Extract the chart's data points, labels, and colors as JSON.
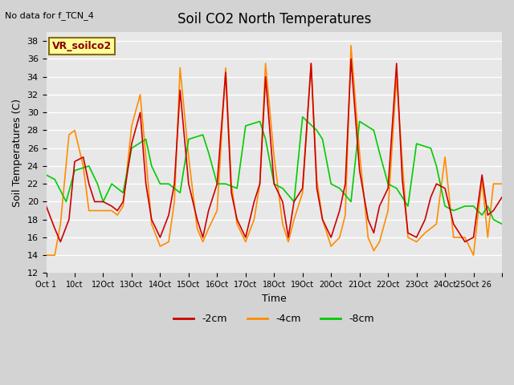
{
  "title": "Soil CO2 North Temperatures",
  "no_data_label": "No data for f_TCN_4",
  "ylabel": "Soil Temperatures (C)",
  "xlabel": "Time",
  "ylim": [
    12,
    39
  ],
  "yticks": [
    12,
    14,
    16,
    18,
    20,
    22,
    24,
    26,
    28,
    30,
    32,
    34,
    36,
    38
  ],
  "xtick_labels": [
    "Oct 1",
    "10ct",
    "12Oct",
    "13Oct",
    "14Oct",
    "15Oct",
    "16Oct",
    "17Oct",
    "18Oct",
    "19Oct",
    "20Oct",
    "21Oct",
    "22Oct",
    "23Oct",
    "24Oct",
    "25Oct 26"
  ],
  "box_label": "VR_soilco2",
  "box_label_color": "#8B0000",
  "box_bg_color": "#FFFF99",
  "line_2cm_color": "#CC0000",
  "line_4cm_color": "#FF8C00",
  "line_8cm_color": "#00CC00",
  "legend_labels": [
    "-2cm",
    "-4cm",
    "-8cm"
  ],
  "bg_color": "#E8E8E8",
  "plot_bg_color": "#F0F0F0",
  "x_2cm": [
    0,
    0.3,
    0.5,
    0.8,
    1.0,
    1.3,
    1.5,
    1.7,
    2.0,
    2.3,
    2.5,
    2.7,
    3.0,
    3.3,
    3.5,
    3.7,
    4.0,
    4.3,
    4.5,
    4.7,
    5.0,
    5.3,
    5.5,
    5.7,
    6.0,
    6.3,
    6.5,
    6.7,
    7.0,
    7.3,
    7.5,
    7.7,
    8.0,
    8.3,
    8.5,
    8.7,
    9.0,
    9.3,
    9.5,
    9.7,
    10.0,
    10.3,
    10.5,
    10.7,
    11.0,
    11.3,
    11.5,
    11.7,
    12.0,
    12.3,
    12.5,
    12.7,
    13.0,
    13.3,
    13.5,
    13.7,
    14.0,
    14.3,
    14.5,
    14.7,
    15.0,
    15.3,
    15.5,
    15.7,
    16.0
  ],
  "y_2cm": [
    19.5,
    17.0,
    15.5,
    18.0,
    24.5,
    25.0,
    22.0,
    20.0,
    20.0,
    19.5,
    19.0,
    20.0,
    26.5,
    30.0,
    22.0,
    18.0,
    16.0,
    18.5,
    22.0,
    32.5,
    22.0,
    18.0,
    16.0,
    19.0,
    22.0,
    34.5,
    21.0,
    18.0,
    16.0,
    20.0,
    22.0,
    34.0,
    22.0,
    20.0,
    16.0,
    20.0,
    21.5,
    35.5,
    21.5,
    18.0,
    16.0,
    19.0,
    22.0,
    36.0,
    23.5,
    18.0,
    16.5,
    19.5,
    21.5,
    35.5,
    22.5,
    16.5,
    16.0,
    18.0,
    20.5,
    22.0,
    21.5,
    17.5,
    16.5,
    15.5,
    16.0,
    23.0,
    18.5,
    19.0,
    20.5
  ],
  "x_4cm": [
    0,
    0.3,
    0.5,
    0.8,
    1.0,
    1.3,
    1.5,
    1.7,
    2.0,
    2.3,
    2.5,
    2.7,
    3.0,
    3.3,
    3.5,
    3.7,
    4.0,
    4.3,
    4.5,
    4.7,
    5.0,
    5.3,
    5.5,
    5.7,
    6.0,
    6.3,
    6.5,
    6.7,
    7.0,
    7.3,
    7.5,
    7.7,
    8.0,
    8.3,
    8.5,
    8.7,
    9.0,
    9.3,
    9.5,
    9.7,
    10.0,
    10.3,
    10.5,
    10.7,
    11.0,
    11.3,
    11.5,
    11.7,
    12.0,
    12.3,
    12.5,
    12.7,
    13.0,
    13.3,
    13.5,
    13.7,
    14.0,
    14.3,
    14.5,
    14.7,
    15.0,
    15.3,
    15.5,
    15.7,
    16.0
  ],
  "y_4cm": [
    14.0,
    14.0,
    17.5,
    27.5,
    28.0,
    24.0,
    19.0,
    19.0,
    19.0,
    19.0,
    18.5,
    19.5,
    28.5,
    32.0,
    25.0,
    17.5,
    15.0,
    15.5,
    20.0,
    35.0,
    25.0,
    17.0,
    15.5,
    17.0,
    19.0,
    35.0,
    22.0,
    17.5,
    15.5,
    18.0,
    22.0,
    35.5,
    25.0,
    17.5,
    15.5,
    18.0,
    21.0,
    35.5,
    22.5,
    18.0,
    15.0,
    16.0,
    18.5,
    37.5,
    25.5,
    16.0,
    14.5,
    15.5,
    19.0,
    34.0,
    24.5,
    16.0,
    15.5,
    16.5,
    17.0,
    17.5,
    25.0,
    16.0,
    16.0,
    16.0,
    14.0,
    22.5,
    16.0,
    22.0,
    22.0
  ],
  "x_8cm": [
    0,
    0.3,
    0.7,
    1.0,
    1.5,
    1.8,
    2.0,
    2.3,
    2.7,
    3.0,
    3.5,
    3.7,
    4.0,
    4.3,
    4.7,
    5.0,
    5.5,
    5.7,
    6.0,
    6.3,
    6.7,
    7.0,
    7.5,
    7.7,
    8.0,
    8.3,
    8.7,
    9.0,
    9.5,
    9.7,
    10.0,
    10.3,
    10.7,
    11.0,
    11.5,
    11.7,
    12.0,
    12.3,
    12.7,
    13.0,
    13.5,
    13.7,
    14.0,
    14.3,
    14.7,
    15.0,
    15.3,
    15.5,
    15.7,
    16.0
  ],
  "y_8cm": [
    23.0,
    22.5,
    20.0,
    23.5,
    24.0,
    22.0,
    20.0,
    22.0,
    21.0,
    26.0,
    27.0,
    24.0,
    22.0,
    22.0,
    21.0,
    27.0,
    27.5,
    25.5,
    22.0,
    22.0,
    21.5,
    28.5,
    29.0,
    27.0,
    22.0,
    21.5,
    20.0,
    29.5,
    28.0,
    27.0,
    22.0,
    21.5,
    20.0,
    29.0,
    28.0,
    25.5,
    22.0,
    21.5,
    19.5,
    26.5,
    26.0,
    24.0,
    19.5,
    19.0,
    19.5,
    19.5,
    18.5,
    19.5,
    18.0,
    17.5
  ]
}
